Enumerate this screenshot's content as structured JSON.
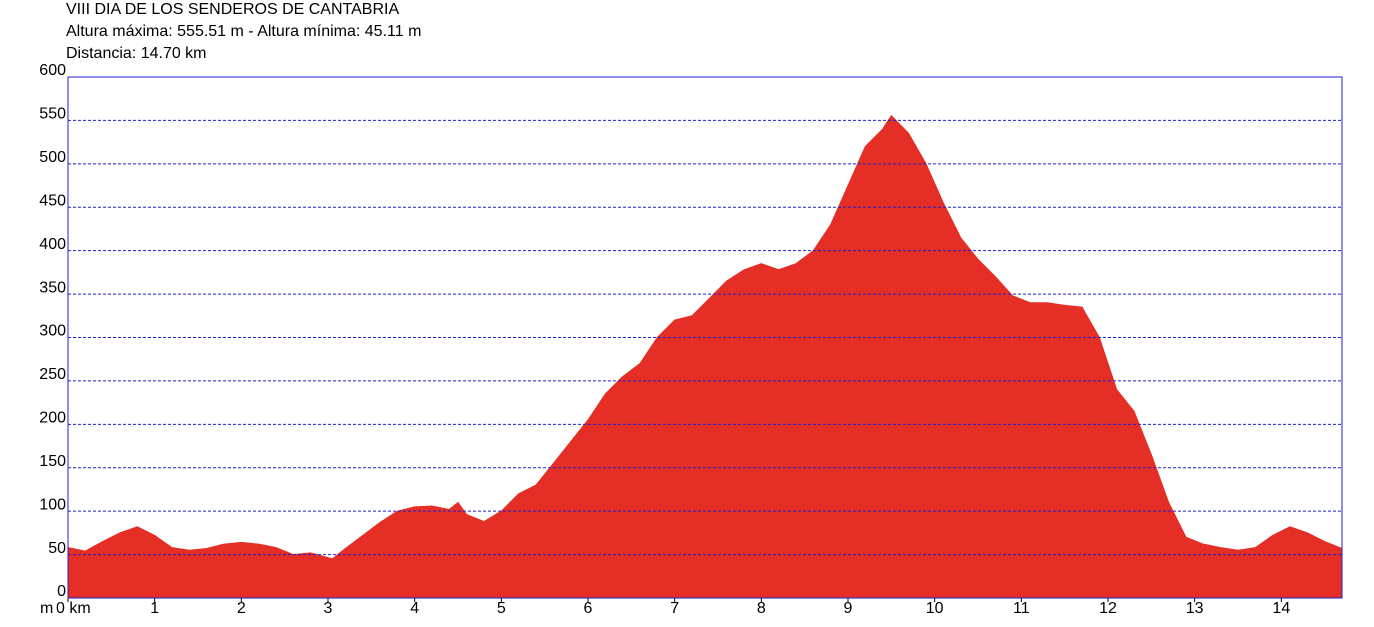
{
  "chart_data": {
    "type": "area",
    "title": "VIII DIA DE LOS SENDEROS DE CANTABRIA",
    "subtitles": [
      "Altura máxima: 555.51 m - Altura mínima: 45.11 m",
      "Distancia: 14.70 km"
    ],
    "y_label": "m",
    "color": "#e52e25",
    "grid": true,
    "grid_color": "#1f1fd0",
    "x": [
      0,
      0.2,
      0.4,
      0.6,
      0.8,
      1.0,
      1.2,
      1.4,
      1.6,
      1.8,
      2.0,
      2.2,
      2.4,
      2.6,
      2.8,
      3.05,
      3.2,
      3.4,
      3.6,
      3.8,
      4.0,
      4.2,
      4.4,
      4.5,
      4.6,
      4.8,
      5.0,
      5.2,
      5.4,
      5.6,
      5.8,
      6.0,
      6.2,
      6.4,
      6.6,
      6.8,
      7.0,
      7.2,
      7.4,
      7.6,
      7.8,
      8.0,
      8.2,
      8.4,
      8.6,
      8.8,
      9.0,
      9.2,
      9.4,
      9.5,
      9.7,
      9.9,
      10.1,
      10.3,
      10.5,
      10.7,
      10.9,
      11.1,
      11.3,
      11.5,
      11.7,
      11.9,
      12.1,
      12.3,
      12.5,
      12.7,
      12.9,
      13.1,
      13.3,
      13.5,
      13.7,
      13.9,
      14.1,
      14.3,
      14.5,
      14.7
    ],
    "values": [
      58,
      54,
      65,
      75,
      82,
      72,
      58,
      55,
      57,
      62,
      64,
      62,
      58,
      50,
      52,
      45.11,
      57,
      72,
      87,
      100,
      105,
      106,
      102,
      110,
      96,
      88,
      100,
      120,
      130,
      155,
      180,
      205,
      235,
      255,
      270,
      300,
      320,
      325,
      345,
      365,
      378,
      385,
      378,
      385,
      400,
      430,
      475,
      520,
      540,
      555.51,
      535,
      500,
      455,
      415,
      390,
      370,
      348,
      340,
      340,
      337,
      335,
      300,
      240,
      215,
      165,
      110,
      70,
      62,
      58,
      55,
      58,
      72,
      82,
      75,
      65,
      57
    ],
    "xlim": [
      0,
      14.7
    ],
    "ylim": [
      0,
      600
    ],
    "xticks": [
      {
        "value": 0,
        "label": "0 km"
      },
      1,
      2,
      3,
      4,
      5,
      6,
      7,
      8,
      9,
      10,
      11,
      12,
      13,
      14
    ],
    "yticks": [
      0,
      50,
      100,
      150,
      200,
      250,
      300,
      350,
      400,
      450,
      500,
      550,
      600
    ]
  }
}
